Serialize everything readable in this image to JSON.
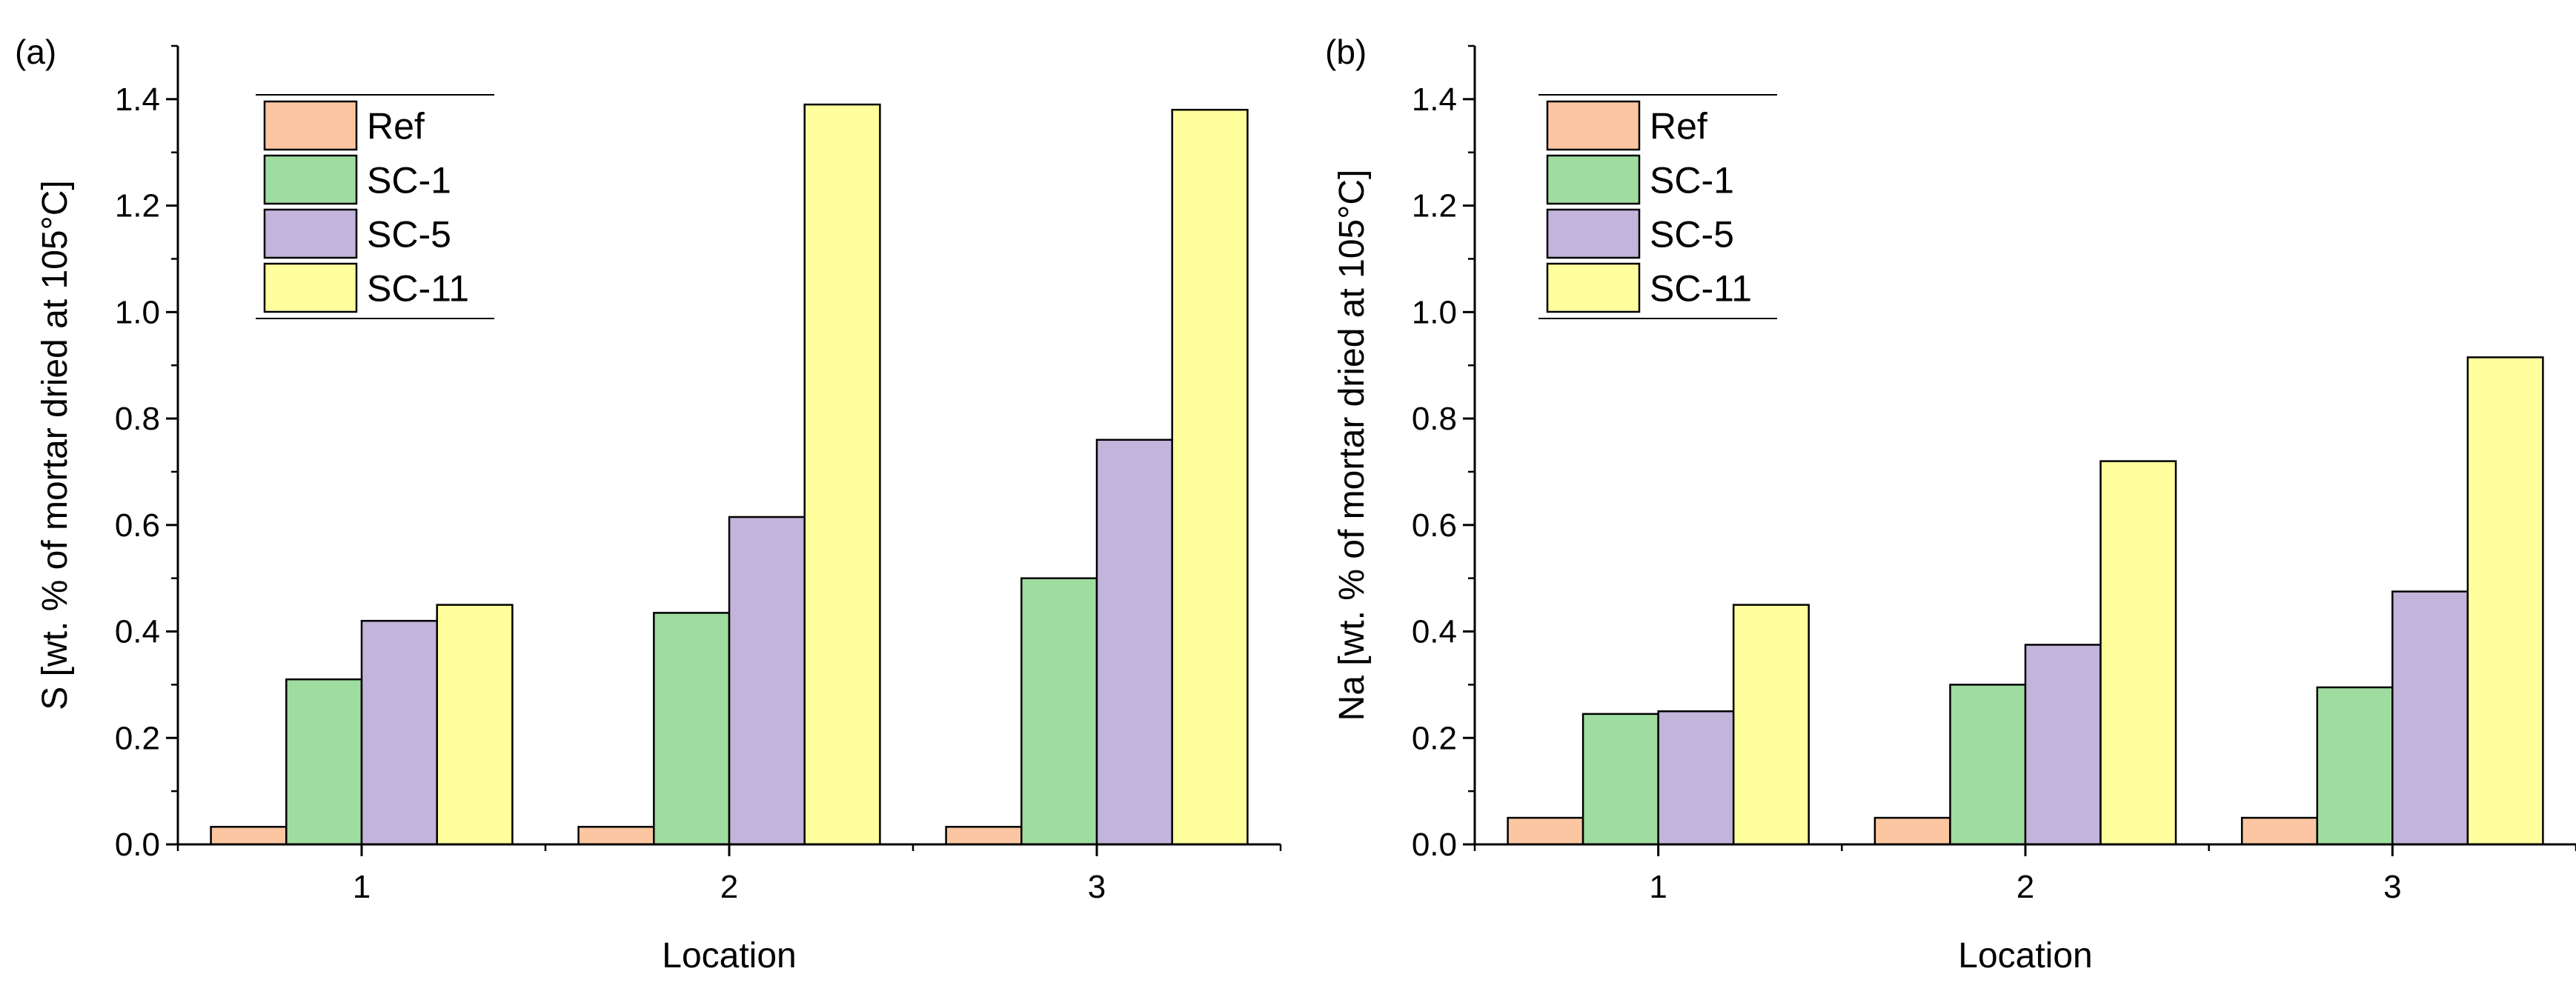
{
  "colors": {
    "Ref": "#fbc6a1",
    "SC-1": "#9fdca0",
    "SC-5": "#c2b4da",
    "SC-11": "#ffff9d",
    "axis": "#000000",
    "background": "#ffffff"
  },
  "chart_data": [
    {
      "type": "bar",
      "panel_label": "(a)",
      "title": "",
      "xlabel": "Location",
      "ylabel": "S [wt. % of mortar dried at 105°C]",
      "categories": [
        "1",
        "2",
        "3"
      ],
      "ylim": [
        0,
        1.5
      ],
      "yticks": [
        0.0,
        0.2,
        0.4,
        0.6,
        0.8,
        1.0,
        1.2,
        1.4
      ],
      "ytick_labels": [
        "0.0",
        "0.2",
        "0.4",
        "0.6",
        "0.8",
        "1.0",
        "1.2",
        "1.4"
      ],
      "legend_position": "top-left",
      "series": [
        {
          "name": "Ref",
          "values": [
            0.033,
            0.033,
            0.033
          ]
        },
        {
          "name": "SC-1",
          "values": [
            0.31,
            0.435,
            0.5
          ]
        },
        {
          "name": "SC-5",
          "values": [
            0.42,
            0.615,
            0.76
          ]
        },
        {
          "name": "SC-11",
          "values": [
            0.45,
            1.39,
            1.38
          ]
        }
      ]
    },
    {
      "type": "bar",
      "panel_label": "(b)",
      "title": "",
      "xlabel": "Location",
      "ylabel": "Na [wt. % of mortar dried at 105°C]",
      "categories": [
        "1",
        "2",
        "3"
      ],
      "ylim": [
        0,
        1.5
      ],
      "yticks": [
        0.0,
        0.2,
        0.4,
        0.6,
        0.8,
        1.0,
        1.2,
        1.4
      ],
      "ytick_labels": [
        "0.0",
        "0.2",
        "0.4",
        "0.6",
        "0.8",
        "1.0",
        "1.2",
        "1.4"
      ],
      "legend_position": "top-left",
      "series": [
        {
          "name": "Ref",
          "values": [
            0.05,
            0.05,
            0.05
          ]
        },
        {
          "name": "SC-1",
          "values": [
            0.245,
            0.3,
            0.295
          ]
        },
        {
          "name": "SC-5",
          "values": [
            0.25,
            0.375,
            0.475
          ]
        },
        {
          "name": "SC-11",
          "values": [
            0.45,
            0.72,
            0.915
          ]
        }
      ]
    }
  ]
}
